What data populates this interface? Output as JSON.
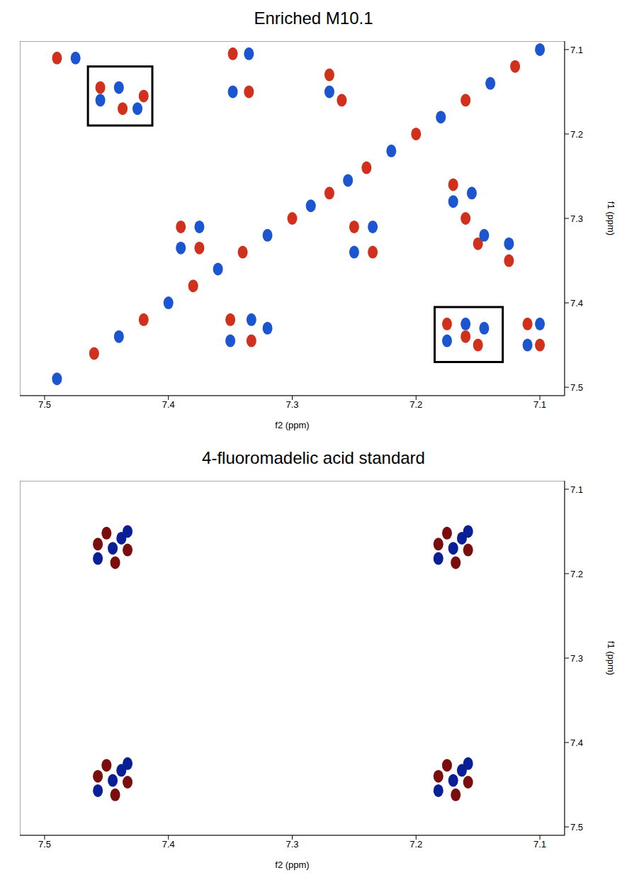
{
  "chart_data": [
    {
      "type": "scatter",
      "title": "Enriched M10.1",
      "x_label": "f2 (ppm)",
      "y_label": "f1 (ppm)",
      "xlim": [
        7.52,
        7.08
      ],
      "xticks": [
        7.5,
        7.4,
        7.3,
        7.2,
        7.1
      ],
      "ylim": [
        7.51,
        7.09
      ],
      "yticks": [
        7.1,
        7.2,
        7.3,
        7.4,
        7.5
      ],
      "series": [
        {
          "color": "#d0301c",
          "x": [
            7.49,
            7.455,
            7.42,
            7.437,
            7.348,
            7.335,
            7.26,
            7.27,
            7.39,
            7.375,
            7.35,
            7.333,
            7.25,
            7.235,
            7.17,
            7.16,
            7.15,
            7.175,
            7.16,
            7.15,
            7.11,
            7.1,
            7.125,
            7.46,
            7.42,
            7.38,
            7.34,
            7.3,
            7.27,
            7.24,
            7.2,
            7.16,
            7.12
          ],
          "y": [
            7.11,
            7.145,
            7.155,
            7.17,
            7.105,
            7.15,
            7.16,
            7.13,
            7.31,
            7.335,
            7.42,
            7.445,
            7.31,
            7.34,
            7.26,
            7.3,
            7.33,
            7.425,
            7.44,
            7.45,
            7.425,
            7.45,
            7.35,
            7.46,
            7.42,
            7.38,
            7.34,
            7.3,
            7.27,
            7.24,
            7.2,
            7.16,
            7.12
          ]
        },
        {
          "color": "#1c55d0",
          "x": [
            7.475,
            7.455,
            7.44,
            7.425,
            7.335,
            7.348,
            7.27,
            7.39,
            7.375,
            7.35,
            7.333,
            7.32,
            7.25,
            7.235,
            7.17,
            7.155,
            7.145,
            7.175,
            7.16,
            7.145,
            7.1,
            7.11,
            7.125,
            7.49,
            7.44,
            7.4,
            7.36,
            7.32,
            7.285,
            7.255,
            7.22,
            7.18,
            7.14,
            7.1
          ],
          "y": [
            7.11,
            7.16,
            7.145,
            7.17,
            7.105,
            7.15,
            7.15,
            7.335,
            7.31,
            7.445,
            7.42,
            7.43,
            7.34,
            7.31,
            7.28,
            7.27,
            7.32,
            7.445,
            7.425,
            7.43,
            7.425,
            7.45,
            7.33,
            7.49,
            7.44,
            7.4,
            7.36,
            7.32,
            7.285,
            7.255,
            7.22,
            7.18,
            7.14,
            7.1
          ]
        }
      ],
      "highlight_boxes": [
        {
          "x": [
            7.465,
            7.413
          ],
          "y": [
            7.12,
            7.19
          ]
        },
        {
          "x": [
            7.185,
            7.13
          ],
          "y": [
            7.405,
            7.47
          ]
        }
      ]
    },
    {
      "type": "scatter",
      "title": "4-fluoromadelic acid standard",
      "x_label": "f2 (ppm)",
      "y_label": "f1 (ppm)",
      "xlim": [
        7.52,
        7.08
      ],
      "xticks": [
        7.5,
        7.4,
        7.3,
        7.2,
        7.1
      ],
      "ylim": [
        7.51,
        7.09
      ],
      "yticks": [
        7.1,
        7.2,
        7.3,
        7.4,
        7.5
      ],
      "series": [
        {
          "color": "#7a0e0e",
          "x": [
            7.457,
            7.443,
            7.433,
            7.45,
            7.182,
            7.168,
            7.158,
            7.175,
            7.457,
            7.443,
            7.433,
            7.45,
            7.182,
            7.168,
            7.158,
            7.175
          ],
          "y": [
            7.165,
            7.187,
            7.172,
            7.152,
            7.165,
            7.187,
            7.172,
            7.152,
            7.44,
            7.462,
            7.447,
            7.427,
            7.44,
            7.462,
            7.447,
            7.427
          ]
        },
        {
          "color": "#0a1e96",
          "x": [
            7.457,
            7.445,
            7.438,
            7.433,
            7.182,
            7.17,
            7.163,
            7.158,
            7.457,
            7.445,
            7.438,
            7.433,
            7.182,
            7.17,
            7.163,
            7.158
          ],
          "y": [
            7.182,
            7.17,
            7.158,
            7.15,
            7.182,
            7.17,
            7.158,
            7.15,
            7.457,
            7.445,
            7.433,
            7.425,
            7.457,
            7.445,
            7.433,
            7.425
          ]
        }
      ]
    }
  ]
}
